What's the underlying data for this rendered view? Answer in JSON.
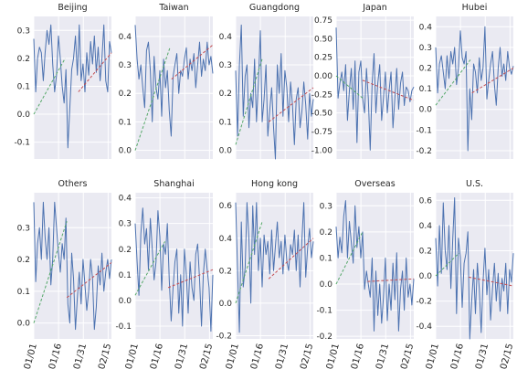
{
  "chart_data": {
    "type": "line",
    "x_tick_labels": [
      "01/01",
      "01/16",
      "01/31",
      "02/15"
    ],
    "style": {
      "background": "#eaeaf2",
      "grid": true,
      "grid_color": "#ffffff",
      "series_color": "#4c72b0",
      "trend_early_color": "#55a868",
      "trend_late_color": "#c44e52"
    },
    "panels": [
      {
        "title": "Beijing",
        "ylim": [
          -0.16,
          0.35
        ],
        "yticks": [
          "-0.1",
          "0.0",
          "0.1",
          "0.2",
          "0.3"
        ],
        "ytick_values": [
          -0.1,
          0,
          0.1,
          0.2,
          0.3
        ],
        "series": [
          0.27,
          0.08,
          0.2,
          0.24,
          0.22,
          0.12,
          0.22,
          0.3,
          0.25,
          0.32,
          0.18,
          0.08,
          0.14,
          0.28,
          0.2,
          0.1,
          0.04,
          0.16,
          -0.12,
          0.02,
          0.16,
          0.2,
          0.28,
          0.14,
          0.32,
          0.12,
          0.18,
          0.08,
          0.22,
          0.14,
          0.26,
          0.18,
          0.28,
          0.15,
          0.24,
          0.12,
          0.2,
          0.32,
          0.12,
          0.08,
          0.26,
          0.22
        ],
        "trend_early": [
          [
            0,
            0.0
          ],
          [
            19,
            0.2
          ]
        ],
        "trend_late": [
          [
            27,
            0.08
          ],
          [
            47,
            0.22
          ]
        ]
      },
      {
        "title": "Taiwan",
        "ylim": [
          -0.03,
          0.47
        ],
        "yticks": [
          "0.0",
          "0.1",
          "0.2",
          "0.3",
          "0.4"
        ],
        "ytick_values": [
          0,
          0.1,
          0.2,
          0.3,
          0.4
        ],
        "series": [
          0.44,
          0.32,
          0.25,
          0.3,
          0.22,
          0.15,
          0.35,
          0.38,
          0.28,
          0.1,
          0.33,
          0.22,
          0.18,
          0.28,
          0.12,
          0.32,
          0.22,
          0.28,
          0.14,
          0.05,
          0.26,
          0.3,
          0.34,
          0.2,
          0.28,
          0.26,
          0.32,
          0.36,
          0.25,
          0.32,
          0.28,
          0.34,
          0.22,
          0.3,
          0.38,
          0.26,
          0.32,
          0.28,
          0.38,
          0.3,
          0.33,
          0.27
        ],
        "trend_early": [
          [
            0,
            0.0
          ],
          [
            21,
            0.36
          ]
        ],
        "trend_late": [
          [
            22,
            0.25
          ],
          [
            47,
            0.37
          ]
        ]
      },
      {
        "title": "Guangdong",
        "ylim": [
          -0.03,
          0.47
        ],
        "yticks": [
          "0.0",
          "0.1",
          "0.2",
          "0.3",
          "0.4"
        ],
        "ytick_values": [
          0,
          0.1,
          0.2,
          0.3,
          0.4
        ],
        "series": [
          0.28,
          0.05,
          0.3,
          0.44,
          0.12,
          0.26,
          0.3,
          0.08,
          0.2,
          0.15,
          0.32,
          0.1,
          0.24,
          0.42,
          0.1,
          0.18,
          0.3,
          0.05,
          0.14,
          0.22,
          0.08,
          -0.03,
          0.3,
          0.2,
          0.34,
          0.12,
          0.28,
          0.22,
          0.1,
          0.24,
          0.16,
          0.02,
          0.18,
          0.22,
          0.08,
          0.14,
          0.24,
          0.16,
          0.04,
          0.2,
          0.12,
          0.18
        ],
        "trend_early": [
          [
            0,
            0.02
          ],
          [
            16,
            0.32
          ]
        ],
        "trend_late": [
          [
            20,
            0.1
          ],
          [
            47,
            0.22
          ]
        ]
      },
      {
        "title": "Japan",
        "ylim": [
          -1.12,
          0.8
        ],
        "yticks": [
          "-1.00",
          "-0.75",
          "-0.50",
          "-0.25",
          "0.00",
          "0.25",
          "0.50",
          "0.75"
        ],
        "ytick_values": [
          -1,
          -0.75,
          -0.5,
          -0.25,
          0,
          0.25,
          0.5,
          0.75
        ],
        "series": [
          0.65,
          -0.3,
          -0.1,
          0.05,
          -0.2,
          0.15,
          -0.6,
          -0.2,
          0.1,
          -0.45,
          0.2,
          -0.9,
          0.05,
          0.2,
          -0.3,
          -0.5,
          0.1,
          -0.3,
          -1.0,
          -0.1,
          0.3,
          -0.5,
          -0.1,
          0.15,
          -0.6,
          -0.3,
          0.05,
          -0.5,
          -0.2,
          0.05,
          -0.7,
          -0.3,
          0.1,
          -0.45,
          -0.1,
          0.05,
          -0.4,
          -0.15,
          -0.2,
          -0.35,
          -0.2,
          -0.15
        ],
        "trend_early": [
          [
            0,
            0.0
          ],
          [
            16,
            -0.3
          ]
        ],
        "trend_late": [
          [
            16,
            -0.06
          ],
          [
            47,
            -0.33
          ]
        ]
      },
      {
        "title": "Hubei",
        "ylim": [
          -0.24,
          0.45
        ],
        "yticks": [
          "-0.2",
          "-0.1",
          "0.0",
          "0.1",
          "0.2",
          "0.3",
          "0.4"
        ],
        "ytick_values": [
          -0.2,
          -0.1,
          0,
          0.1,
          0.2,
          0.3,
          0.4
        ],
        "series": [
          0.3,
          0.08,
          0.22,
          0.26,
          0.18,
          0.1,
          0.26,
          0.15,
          0.28,
          0.22,
          0.3,
          0.12,
          0.2,
          0.38,
          0.25,
          0.22,
          0.28,
          -0.2,
          0.1,
          -0.05,
          0.22,
          0.18,
          0.08,
          0.25,
          0.14,
          0.2,
          0.4,
          0.05,
          0.14,
          0.22,
          0.28,
          0.12,
          0.02,
          0.2,
          0.3,
          0.16,
          0.22,
          0.14,
          0.28,
          0.2,
          0.17,
          0.21
        ],
        "trend_early": [
          [
            0,
            0.02
          ],
          [
            21,
            0.24
          ]
        ],
        "trend_late": [
          [
            22,
            0.08
          ],
          [
            47,
            0.2
          ]
        ]
      },
      {
        "title": "Others",
        "ylim": [
          -0.05,
          0.41
        ],
        "yticks": [
          "0.0",
          "0.1",
          "0.2",
          "0.3"
        ],
        "ytick_values": [
          0,
          0.1,
          0.2,
          0.3
        ],
        "series": [
          0.38,
          0.13,
          0.25,
          0.3,
          0.2,
          0.38,
          0.27,
          0.2,
          0.3,
          0.12,
          0.2,
          0.38,
          0.3,
          0.22,
          0.16,
          0.25,
          0.2,
          0.33,
          0.06,
          0.0,
          0.22,
          0.14,
          -0.02,
          0.08,
          0.16,
          0.06,
          0.2,
          0.12,
          0.04,
          0.1,
          0.2,
          0.14,
          -0.02,
          0.05,
          0.18,
          0.12,
          0.22,
          0.1,
          0.16,
          0.2,
          0.14,
          0.2
        ],
        "trend_early": [
          [
            0,
            0.0
          ],
          [
            20,
            0.32
          ]
        ],
        "trend_late": [
          [
            20,
            0.08
          ],
          [
            47,
            0.19
          ]
        ]
      },
      {
        "title": "Shanghai",
        "ylim": [
          -0.15,
          0.42
        ],
        "yticks": [
          "-0.1",
          "0.0",
          "0.1",
          "0.2",
          "0.3",
          "0.4"
        ],
        "ytick_values": [
          -0.1,
          0,
          0.1,
          0.2,
          0.3,
          0.4
        ],
        "series": [
          0.3,
          0.15,
          0.02,
          0.26,
          0.36,
          0.22,
          0.28,
          0.12,
          0.32,
          0.2,
          0.08,
          0.15,
          0.35,
          0.25,
          0.04,
          0.22,
          0.18,
          0.3,
          0.08,
          -0.08,
          0.05,
          0.15,
          0.2,
          -0.05,
          0.1,
          -0.1,
          0.2,
          0.1,
          -0.05,
          0.15,
          0.05,
          0.0,
          0.18,
          0.22,
          0.08,
          -0.1,
          0.1,
          0.2,
          0.12,
          0.05,
          -0.12,
          0.1
        ],
        "trend_early": [
          [
            0,
            0.02
          ],
          [
            18,
            0.23
          ]
        ],
        "trend_late": [
          [
            20,
            0.05
          ],
          [
            47,
            0.12
          ]
        ]
      },
      {
        "title": "Hong kong",
        "ylim": [
          -0.22,
          0.68
        ],
        "yticks": [
          "-0.2",
          "0.0",
          "0.2",
          "0.4",
          "0.6"
        ],
        "ytick_values": [
          -0.2,
          0,
          0.2,
          0.4,
          0.6
        ],
        "series": [
          0.62,
          0.2,
          -0.18,
          0.5,
          0.1,
          0.22,
          0.62,
          0.4,
          0.0,
          0.6,
          0.3,
          0.62,
          0.2,
          0.4,
          0.1,
          0.42,
          0.3,
          0.38,
          0.18,
          0.45,
          0.2,
          0.35,
          0.5,
          0.28,
          0.38,
          0.18,
          0.42,
          0.26,
          0.2,
          0.36,
          0.3,
          0.45,
          0.2,
          0.42,
          0.1,
          0.4,
          0.62,
          0.16,
          0.34,
          0.46,
          0.28,
          0.38
        ],
        "trend_early": [
          [
            0,
            -0.0
          ],
          [
            16,
            0.5
          ]
        ],
        "trend_late": [
          [
            20,
            0.15
          ],
          [
            47,
            0.4
          ]
        ]
      },
      {
        "title": "Overseas",
        "ylim": [
          -0.21,
          0.35
        ],
        "yticks": [
          "-0.2",
          "-0.1",
          "0.0",
          "0.1",
          "0.2",
          "0.3"
        ],
        "ytick_values": [
          -0.2,
          -0.1,
          0,
          0.1,
          0.2,
          0.3
        ],
        "series": [
          0.22,
          0.1,
          0.18,
          0.12,
          0.26,
          0.32,
          0.1,
          0.24,
          0.16,
          0.08,
          0.3,
          0.14,
          0.22,
          0.1,
          0.2,
          -0.02,
          0.05,
          0.0,
          -0.05,
          0.1,
          -0.18,
          0.05,
          -0.12,
          0.0,
          -0.15,
          -0.05,
          0.1,
          -0.14,
          0.0,
          -0.1,
          0.08,
          -0.06,
          0.12,
          -0.18,
          -0.02,
          0.05,
          -0.1,
          0.1,
          -0.05,
          0.0,
          -0.08,
          0.02
        ],
        "trend_early": [
          [
            0,
            0.0
          ],
          [
            16,
            0.2
          ]
        ],
        "trend_late": [
          [
            19,
            0.01
          ],
          [
            47,
            0.02
          ]
        ]
      },
      {
        "title": "U.S.",
        "ylim": [
          -0.5,
          0.66
        ],
        "yticks": [
          "-0.4",
          "-0.2",
          "0.0",
          "0.2",
          "0.4",
          "0.6"
        ],
        "ytick_values": [
          -0.4,
          -0.2,
          0,
          0.2,
          0.4,
          0.6
        ],
        "series": [
          0.3,
          -0.08,
          0.4,
          0.02,
          0.58,
          0.2,
          0.05,
          0.4,
          -0.1,
          0.3,
          0.62,
          -0.3,
          0.3,
          0.15,
          -0.25,
          0.1,
          0.18,
          0.35,
          -0.5,
          -0.2,
          0.05,
          -0.3,
          0.1,
          -0.1,
          -0.45,
          -0.05,
          0.22,
          -0.15,
          0.05,
          -0.35,
          -0.1,
          0.1,
          -0.2,
          0.02,
          -0.28,
          -0.02,
          -0.12,
          0.1,
          -0.3,
          0.05,
          -0.05,
          0.18
        ],
        "trend_early": [
          [
            0,
            0.0
          ],
          [
            14,
            0.18
          ]
        ],
        "trend_late": [
          [
            20,
            -0.01
          ],
          [
            47,
            -0.08
          ]
        ]
      }
    ]
  }
}
